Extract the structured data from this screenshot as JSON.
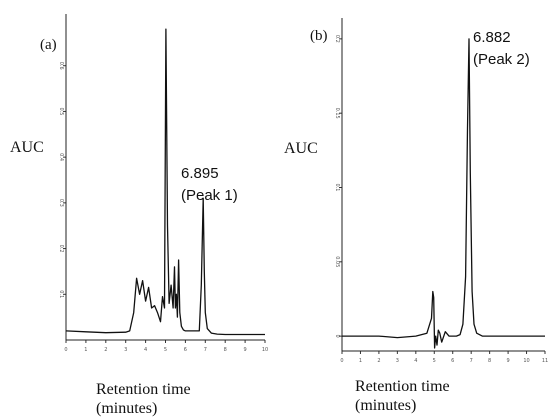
{
  "chart_data": [
    {
      "type": "line",
      "panel_label": "(a)",
      "ylabel": "AUC",
      "xlabel_line1": "Retention time",
      "xlabel_line2": "(minutes)",
      "annotation": {
        "time": "6.895",
        "name": "(Peak 1)",
        "x": 6.895,
        "y": 0.31
      },
      "xlim": [
        0,
        10
      ],
      "ylim": [
        0,
        0.7
      ],
      "x_ticks": [
        0,
        1,
        2,
        3,
        4,
        5,
        6,
        7,
        8,
        9,
        10
      ],
      "y_ticks": [
        0.1,
        0.2,
        0.3,
        0.4,
        0.5,
        0.6
      ],
      "series": [
        {
          "x": [
            0.0,
            1.0,
            2.0,
            3.0,
            3.2,
            3.4,
            3.55,
            3.7,
            3.85,
            4.0,
            4.15,
            4.3,
            4.45,
            4.6,
            4.75,
            4.85,
            4.95,
            5.02,
            5.1,
            5.18,
            5.28,
            5.38,
            5.45,
            5.5,
            5.55,
            5.6,
            5.66,
            5.72,
            5.8,
            5.9,
            6.0,
            6.2,
            6.5,
            6.7,
            6.8,
            6.895,
            6.95,
            7.0,
            7.1,
            7.3,
            7.6,
            8.0,
            9.0,
            10.0
          ],
          "y": [
            0.02,
            0.018,
            0.016,
            0.017,
            0.02,
            0.06,
            0.135,
            0.1,
            0.13,
            0.085,
            0.115,
            0.07,
            0.075,
            0.06,
            0.04,
            0.095,
            0.07,
            0.68,
            0.25,
            0.08,
            0.12,
            0.07,
            0.16,
            0.07,
            0.1,
            0.05,
            0.175,
            0.06,
            0.03,
            0.022,
            0.02,
            0.02,
            0.02,
            0.02,
            0.12,
            0.31,
            0.15,
            0.06,
            0.025,
            0.015,
            0.013,
            0.012,
            0.012,
            0.012
          ]
        }
      ]
    },
    {
      "type": "line",
      "panel_label": "(b)",
      "ylabel": "AUC",
      "xlabel_line1": "Retention time",
      "xlabel_line2": "(minutes)",
      "annotation": {
        "time": "6.882",
        "name": "(Peak 2)",
        "x": 6.882,
        "y": 0.2
      },
      "xlim": [
        0,
        11
      ],
      "ylim": [
        -0.01,
        0.21
      ],
      "x_ticks": [
        0,
        1,
        2,
        3,
        4,
        5,
        6,
        7,
        8,
        9,
        10,
        11
      ],
      "y_ticks": [
        0.0,
        0.05,
        0.1,
        0.15,
        0.2
      ],
      "series": [
        {
          "x": [
            0.0,
            1.0,
            2.0,
            3.0,
            4.0,
            4.6,
            4.85,
            4.92,
            4.97,
            5.02,
            5.08,
            5.15,
            5.22,
            5.3,
            5.4,
            5.6,
            5.8,
            6.0,
            6.2,
            6.4,
            6.55,
            6.7,
            6.8,
            6.882,
            6.95,
            7.05,
            7.15,
            7.3,
            7.6,
            8.0,
            9.0,
            10.0,
            11.0
          ],
          "y": [
            0.0,
            0.0,
            0.0,
            -0.001,
            0.0,
            0.002,
            0.012,
            0.03,
            0.026,
            -0.008,
            0.0,
            -0.006,
            0.004,
            0.002,
            -0.004,
            0.003,
            0.0,
            0.0,
            0.0,
            0.001,
            0.008,
            0.04,
            0.14,
            0.2,
            0.11,
            0.03,
            0.008,
            0.002,
            0.0,
            0.0,
            0.0,
            0.0,
            0.0
          ]
        }
      ]
    }
  ]
}
